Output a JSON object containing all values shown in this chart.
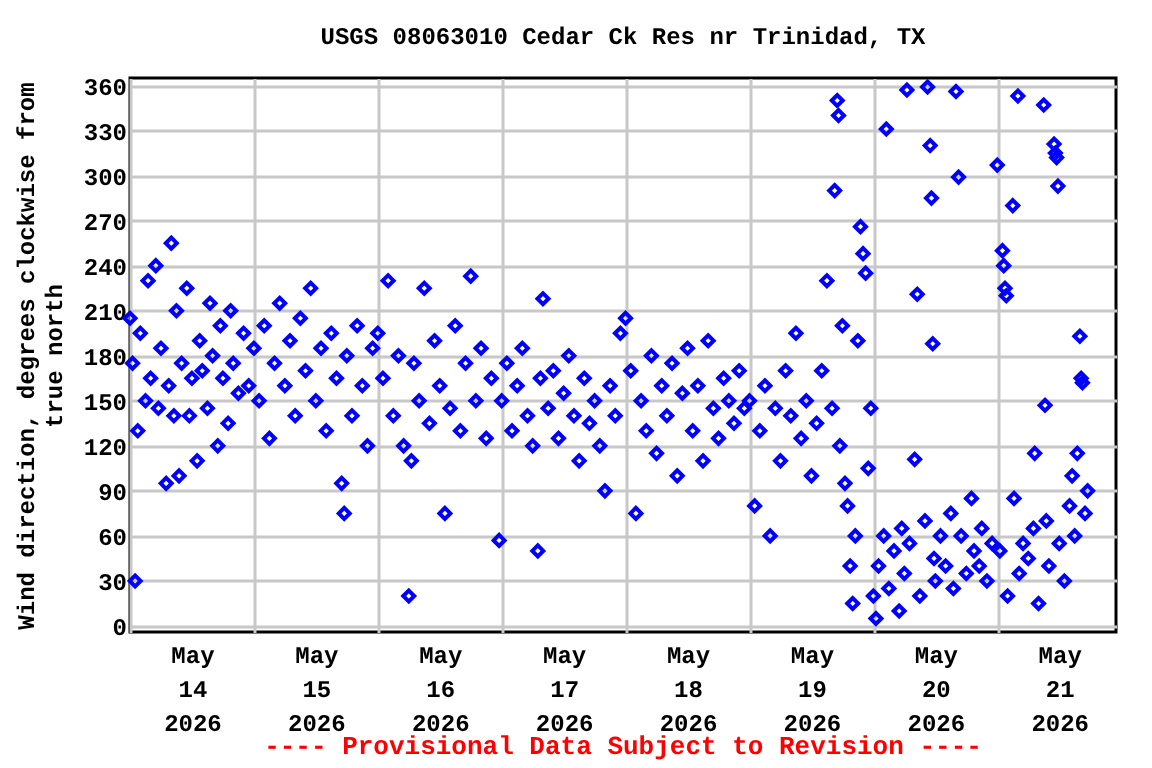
{
  "chart_data": {
    "type": "scatter",
    "title": "USGS 08063010 Cedar Ck Res nr Trinidad, TX",
    "ylabel": "Wind direction, degrees clockwise from\ntrue north",
    "annotations": [
      "---- Provisional Data Subject to Revision ----"
    ],
    "marker": "diamond",
    "grid": true,
    "legend": false,
    "xlim": [
      "2026-05-14T00:00",
      "2026-05-21T23:00"
    ],
    "xticks": [
      {
        "value": "2026-05-14T00:00",
        "label": null
      },
      {
        "value": "2026-05-14T12:00",
        "label": "May\n14\n2026"
      },
      {
        "value": "2026-05-15T00:00",
        "label": null
      },
      {
        "value": "2026-05-15T12:00",
        "label": "May\n15\n2026"
      },
      {
        "value": "2026-05-16T00:00",
        "label": null
      },
      {
        "value": "2026-05-16T12:00",
        "label": "May\n16\n2026"
      },
      {
        "value": "2026-05-17T00:00",
        "label": null
      },
      {
        "value": "2026-05-17T12:00",
        "label": "May\n17\n2026"
      },
      {
        "value": "2026-05-18T00:00",
        "label": null
      },
      {
        "value": "2026-05-18T12:00",
        "label": "May\n18\n2026"
      },
      {
        "value": "2026-05-19T00:00",
        "label": null
      },
      {
        "value": "2026-05-19T12:00",
        "label": "May\n19\n2026"
      },
      {
        "value": "2026-05-20T00:00",
        "label": null
      },
      {
        "value": "2026-05-20T12:00",
        "label": "May\n20\n2026"
      },
      {
        "value": "2026-05-21T00:00",
        "label": null
      },
      {
        "value": "2026-05-21T12:00",
        "label": "May\n21\n2026"
      }
    ],
    "ylim": [
      -4,
      365
    ],
    "yticks": [
      0,
      30,
      60,
      90,
      120,
      150,
      180,
      210,
      240,
      270,
      300,
      330,
      360
    ],
    "x": [
      "2026-05-14T00:00",
      "2026-05-14T00:30",
      "2026-05-14T01:00",
      "2026-05-14T01:30",
      "2026-05-14T02:00",
      "2026-05-14T03:00",
      "2026-05-14T03:30",
      "2026-05-14T04:00",
      "2026-05-14T05:00",
      "2026-05-14T05:30",
      "2026-05-14T06:00",
      "2026-05-14T07:00",
      "2026-05-14T07:30",
      "2026-05-14T08:00",
      "2026-05-14T08:30",
      "2026-05-14T09:00",
      "2026-05-14T09:30",
      "2026-05-14T10:00",
      "2026-05-14T11:00",
      "2026-05-14T11:30",
      "2026-05-14T12:00",
      "2026-05-14T13:00",
      "2026-05-14T13:30",
      "2026-05-14T14:00",
      "2026-05-14T15:00",
      "2026-05-14T15:30",
      "2026-05-14T16:00",
      "2026-05-14T17:00",
      "2026-05-14T17:30",
      "2026-05-14T18:00",
      "2026-05-14T19:00",
      "2026-05-14T19:30",
      "2026-05-14T20:00",
      "2026-05-14T21:00",
      "2026-05-14T22:00",
      "2026-05-14T23:00",
      "2026-05-15T00:00",
      "2026-05-15T01:00",
      "2026-05-15T02:00",
      "2026-05-15T03:00",
      "2026-05-15T04:00",
      "2026-05-15T05:00",
      "2026-05-15T06:00",
      "2026-05-15T07:00",
      "2026-05-15T08:00",
      "2026-05-15T09:00",
      "2026-05-15T10:00",
      "2026-05-15T11:00",
      "2026-05-15T12:00",
      "2026-05-15T13:00",
      "2026-05-15T14:00",
      "2026-05-15T15:00",
      "2026-05-15T16:00",
      "2026-05-15T17:00",
      "2026-05-15T17:30",
      "2026-05-15T18:00",
      "2026-05-15T19:00",
      "2026-05-15T20:00",
      "2026-05-15T21:00",
      "2026-05-15T22:00",
      "2026-05-15T23:00",
      "2026-05-16T00:00",
      "2026-05-16T01:00",
      "2026-05-16T02:00",
      "2026-05-16T03:00",
      "2026-05-16T04:00",
      "2026-05-16T05:00",
      "2026-05-16T06:00",
      "2026-05-16T06:30",
      "2026-05-16T07:00",
      "2026-05-16T08:00",
      "2026-05-16T09:00",
      "2026-05-16T10:00",
      "2026-05-16T11:00",
      "2026-05-16T12:00",
      "2026-05-16T13:00",
      "2026-05-16T14:00",
      "2026-05-16T15:00",
      "2026-05-16T16:00",
      "2026-05-16T17:00",
      "2026-05-16T18:00",
      "2026-05-16T19:00",
      "2026-05-16T20:00",
      "2026-05-16T21:00",
      "2026-05-16T22:00",
      "2026-05-16T23:30",
      "2026-05-17T00:00",
      "2026-05-17T01:00",
      "2026-05-17T02:00",
      "2026-05-17T03:00",
      "2026-05-17T04:00",
      "2026-05-17T05:00",
      "2026-05-17T06:00",
      "2026-05-17T07:00",
      "2026-05-17T07:30",
      "2026-05-17T08:00",
      "2026-05-17T09:00",
      "2026-05-17T10:00",
      "2026-05-17T11:00",
      "2026-05-17T12:00",
      "2026-05-17T13:00",
      "2026-05-17T14:00",
      "2026-05-17T15:00",
      "2026-05-17T16:00",
      "2026-05-17T17:00",
      "2026-05-17T18:00",
      "2026-05-17T19:00",
      "2026-05-17T20:00",
      "2026-05-17T21:00",
      "2026-05-17T22:00",
      "2026-05-17T23:00",
      "2026-05-18T00:00",
      "2026-05-18T01:00",
      "2026-05-18T02:00",
      "2026-05-18T03:00",
      "2026-05-18T04:00",
      "2026-05-18T05:00",
      "2026-05-18T06:00",
      "2026-05-18T07:00",
      "2026-05-18T08:00",
      "2026-05-18T09:00",
      "2026-05-18T10:00",
      "2026-05-18T11:00",
      "2026-05-18T12:00",
      "2026-05-18T13:00",
      "2026-05-18T14:00",
      "2026-05-18T15:00",
      "2026-05-18T16:00",
      "2026-05-18T17:00",
      "2026-05-18T18:00",
      "2026-05-18T19:00",
      "2026-05-18T20:00",
      "2026-05-18T21:00",
      "2026-05-18T22:00",
      "2026-05-18T23:00",
      "2026-05-19T00:00",
      "2026-05-19T01:00",
      "2026-05-19T02:00",
      "2026-05-19T03:00",
      "2026-05-19T04:00",
      "2026-05-19T05:00",
      "2026-05-19T06:00",
      "2026-05-19T07:00",
      "2026-05-19T08:00",
      "2026-05-19T09:00",
      "2026-05-19T10:00",
      "2026-05-19T11:00",
      "2026-05-19T12:00",
      "2026-05-19T13:00",
      "2026-05-19T14:00",
      "2026-05-19T15:00",
      "2026-05-19T16:00",
      "2026-05-19T16:30",
      "2026-05-19T17:00",
      "2026-05-19T17:15",
      "2026-05-19T17:30",
      "2026-05-19T18:00",
      "2026-05-19T18:30",
      "2026-05-19T19:00",
      "2026-05-19T19:30",
      "2026-05-19T20:00",
      "2026-05-19T20:30",
      "2026-05-19T21:00",
      "2026-05-19T21:30",
      "2026-05-19T22:00",
      "2026-05-19T22:30",
      "2026-05-19T23:00",
      "2026-05-19T23:30",
      "2026-05-20T00:00",
      "2026-05-20T00:30",
      "2026-05-20T01:00",
      "2026-05-20T02:00",
      "2026-05-20T02:30",
      "2026-05-20T03:00",
      "2026-05-20T04:00",
      "2026-05-20T05:00",
      "2026-05-20T05:30",
      "2026-05-20T06:00",
      "2026-05-20T06:30",
      "2026-05-20T07:00",
      "2026-05-20T08:00",
      "2026-05-20T08:30",
      "2026-05-20T09:00",
      "2026-05-20T10:00",
      "2026-05-20T10:30",
      "2026-05-20T11:00",
      "2026-05-20T11:15",
      "2026-05-20T11:30",
      "2026-05-20T11:45",
      "2026-05-20T12:00",
      "2026-05-20T13:00",
      "2026-05-20T14:00",
      "2026-05-20T15:00",
      "2026-05-20T15:30",
      "2026-05-20T16:00",
      "2026-05-20T16:30",
      "2026-05-20T17:00",
      "2026-05-20T18:00",
      "2026-05-20T19:00",
      "2026-05-20T19:30",
      "2026-05-20T20:30",
      "2026-05-20T21:00",
      "2026-05-20T22:00",
      "2026-05-20T23:00",
      "2026-05-21T00:00",
      "2026-05-21T00:30",
      "2026-05-21T01:00",
      "2026-05-21T01:15",
      "2026-05-21T01:30",
      "2026-05-21T01:45",
      "2026-05-21T02:00",
      "2026-05-21T03:00",
      "2026-05-21T03:15",
      "2026-05-21T04:00",
      "2026-05-21T04:15",
      "2026-05-21T05:00",
      "2026-05-21T06:00",
      "2026-05-21T07:00",
      "2026-05-21T07:15",
      "2026-05-21T08:00",
      "2026-05-21T09:00",
      "2026-05-21T09:15",
      "2026-05-21T09:30",
      "2026-05-21T10:00",
      "2026-05-21T11:00",
      "2026-05-21T11:15",
      "2026-05-21T11:30",
      "2026-05-21T11:45",
      "2026-05-21T12:00",
      "2026-05-21T13:00",
      "2026-05-21T14:00",
      "2026-05-21T14:30",
      "2026-05-21T15:00",
      "2026-05-21T15:30",
      "2026-05-21T16:00",
      "2026-05-21T16:15",
      "2026-05-21T16:30",
      "2026-05-21T17:00",
      "2026-05-21T17:30"
    ],
    "series": [
      {
        "color": "#0000ff",
        "values": [
          205,
          175,
          30,
          130,
          195,
          150,
          230,
          165,
          240,
          145,
          185,
          95,
          160,
          255,
          140,
          210,
          100,
          175,
          225,
          140,
          165,
          110,
          190,
          170,
          145,
          215,
          180,
          120,
          200,
          165,
          135,
          210,
          175,
          155,
          195,
          160,
          185,
          150,
          200,
          125,
          175,
          215,
          160,
          190,
          140,
          205,
          170,
          225,
          150,
          185,
          130,
          195,
          165,
          95,
          75,
          180,
          140,
          200,
          160,
          120,
          185,
          195,
          165,
          230,
          140,
          180,
          120,
          20,
          110,
          175,
          150,
          225,
          135,
          190,
          160,
          75,
          145,
          200,
          130,
          175,
          233,
          150,
          185,
          125,
          165,
          57,
          150,
          175,
          130,
          160,
          185,
          140,
          120,
          50,
          165,
          218,
          145,
          170,
          125,
          155,
          180,
          140,
          110,
          165,
          135,
          150,
          120,
          90,
          160,
          140,
          195,
          205,
          170,
          75,
          150,
          130,
          180,
          115,
          160,
          140,
          175,
          100,
          155,
          185,
          130,
          160,
          110,
          190,
          145,
          125,
          165,
          150,
          135,
          170,
          145,
          150,
          80,
          130,
          160,
          60,
          145,
          110,
          170,
          140,
          195,
          125,
          150,
          100,
          135,
          170,
          230,
          145,
          290,
          350,
          340,
          120,
          200,
          95,
          80,
          40,
          15,
          60,
          190,
          266,
          248,
          235,
          105,
          145,
          20,
          5,
          40,
          60,
          331,
          25,
          50,
          10,
          65,
          35,
          357,
          55,
          111,
          221,
          20,
          70,
          359,
          320,
          285,
          188,
          45,
          30,
          60,
          40,
          75,
          25,
          356,
          299,
          60,
          35,
          85,
          50,
          40,
          65,
          30,
          55,
          307,
          50,
          250,
          240,
          225,
          220,
          20,
          280,
          85,
          353,
          35,
          55,
          45,
          65,
          115,
          15,
          347,
          147,
          70,
          40,
          321,
          315,
          312,
          293,
          55,
          30,
          80,
          100,
          60,
          115,
          193,
          165,
          162,
          75,
          90
        ]
      }
    ]
  }
}
